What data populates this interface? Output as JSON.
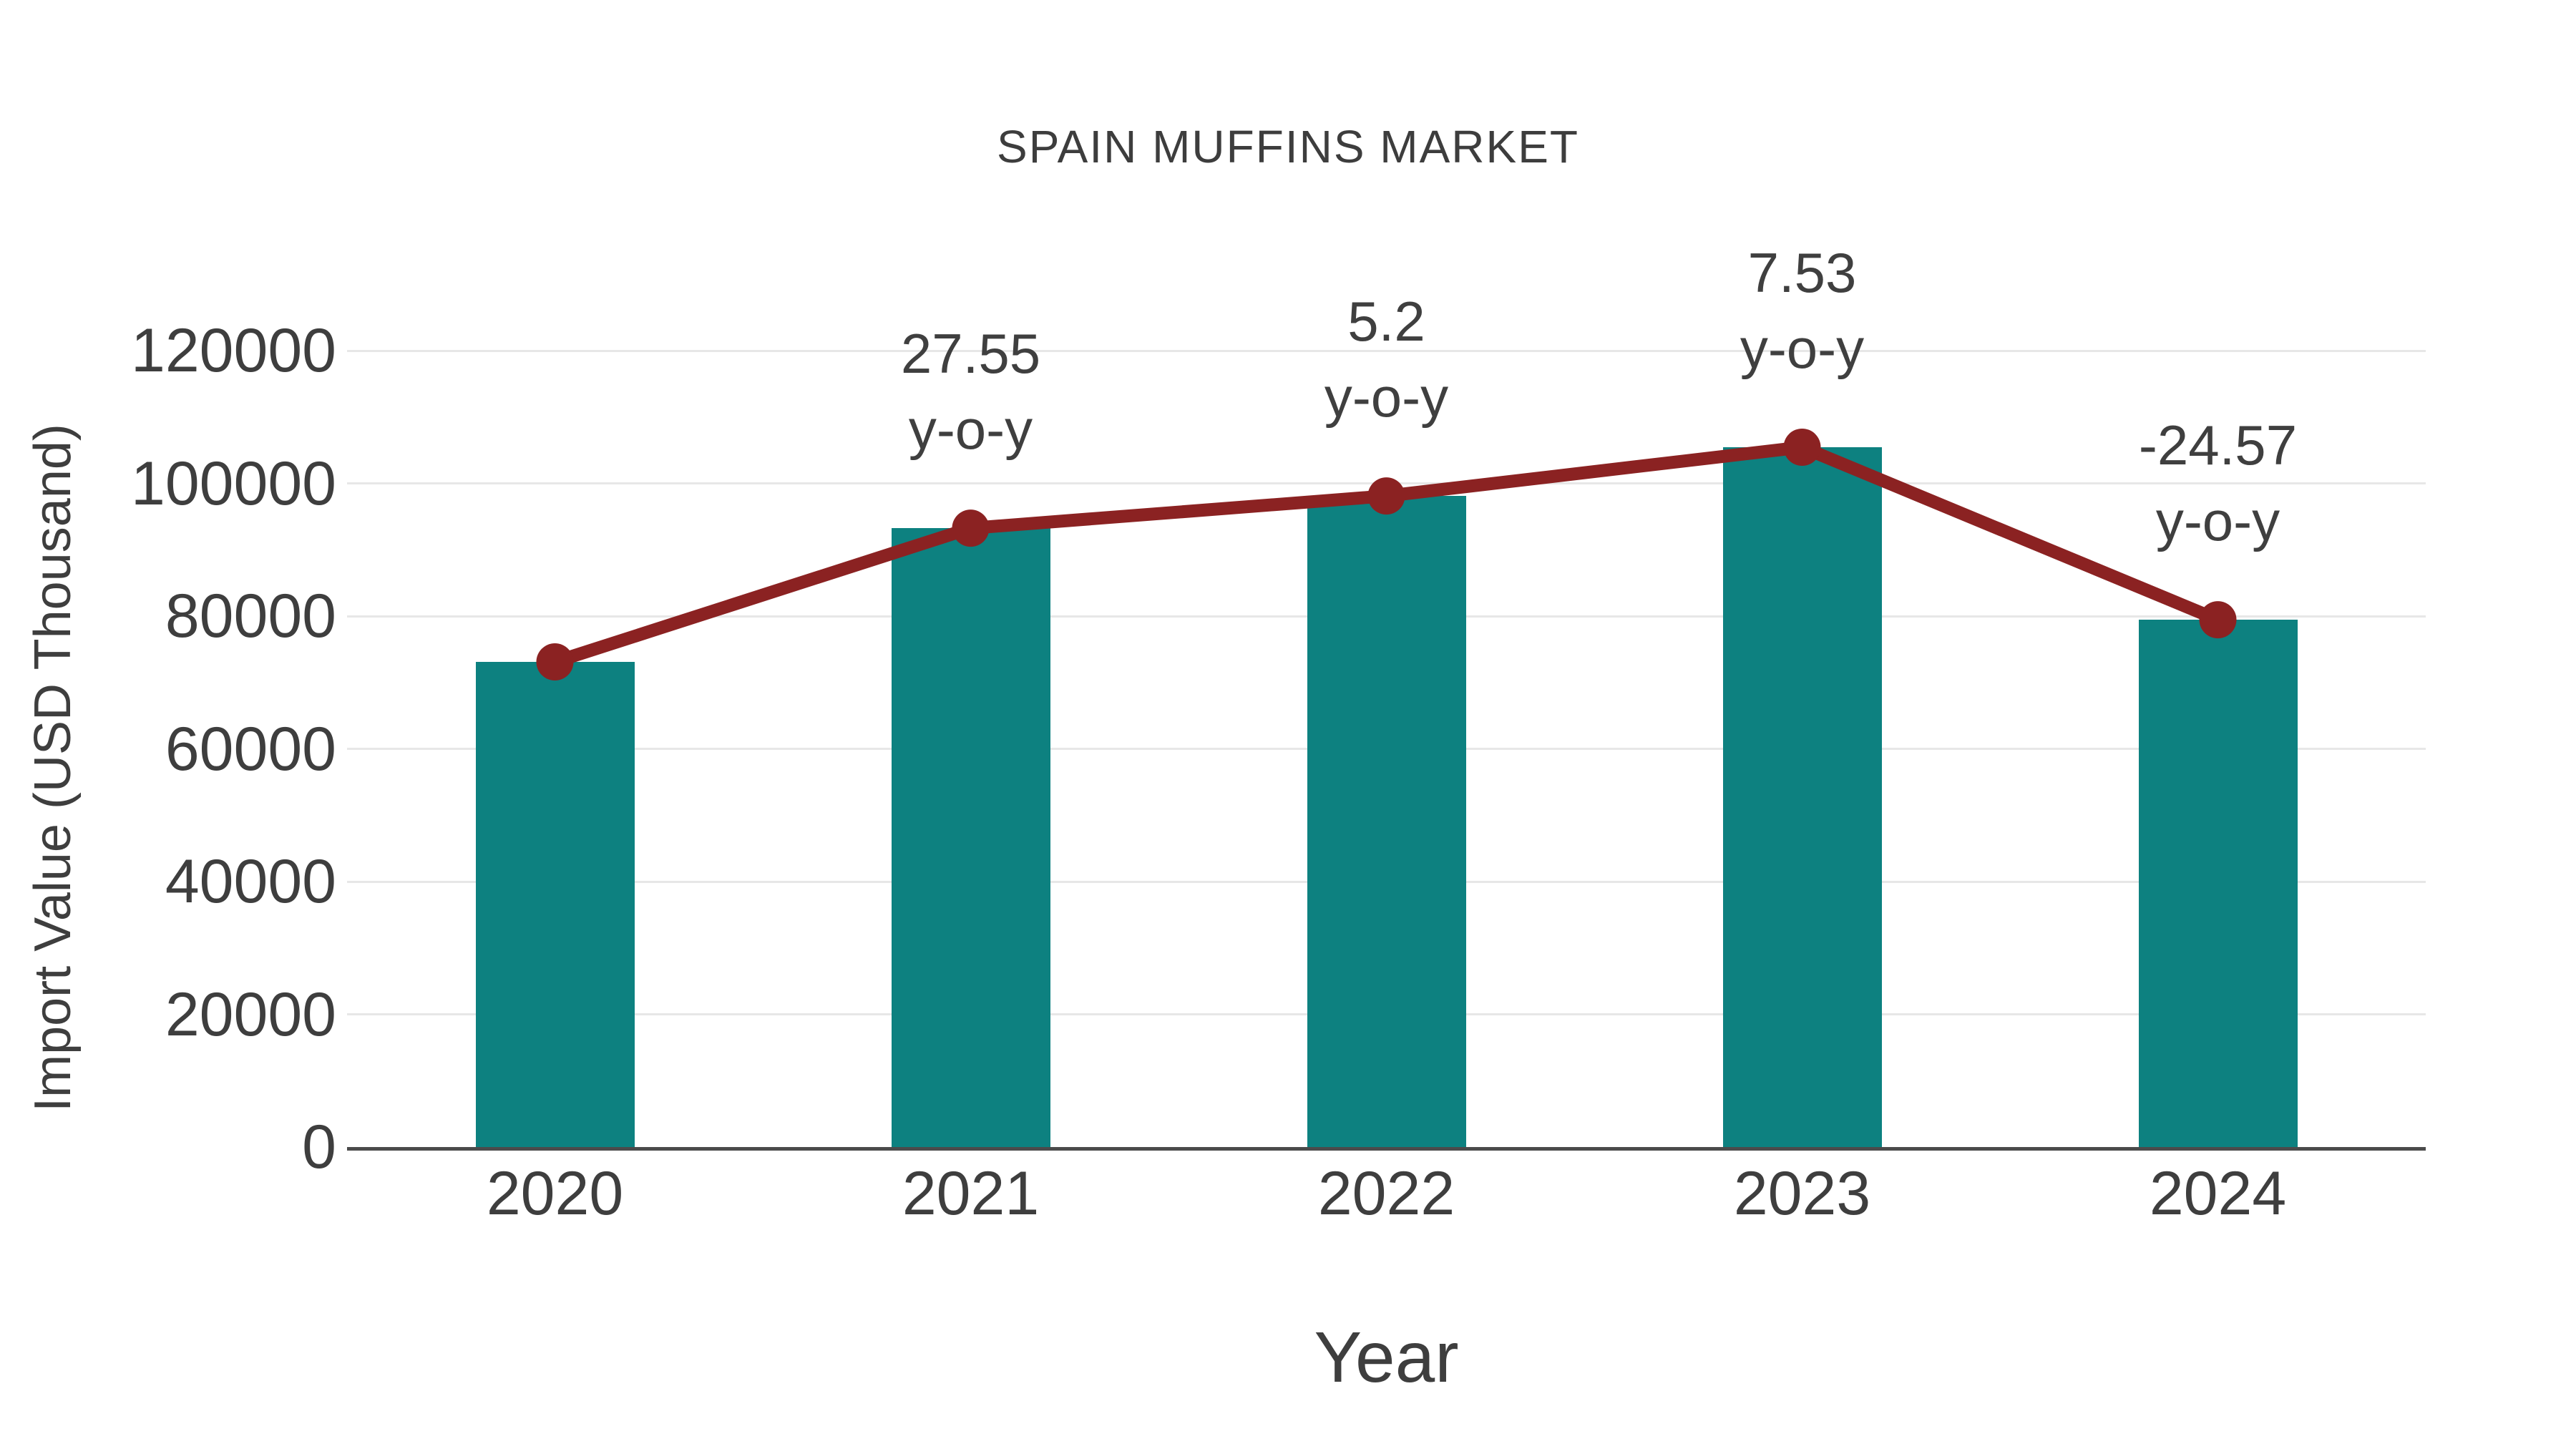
{
  "title": "SPAIN MUFFINS MARKET",
  "colors": {
    "bar": "#0d8180",
    "line": "#8b2222",
    "marker": "#8b2222",
    "grid": "#e7e7e7",
    "axis_line": "#4b4b4b",
    "text": "#3e3e3e",
    "background": "#ffffff"
  },
  "chart_data": {
    "type": "bar",
    "subtype": "bar-with-line-overlay",
    "title": "SPAIN MUFFINS MARKET",
    "xlabel": "Year",
    "ylabel": "Import Value (USD Thousand)",
    "categories": [
      "2020",
      "2021",
      "2022",
      "2023",
      "2024"
    ],
    "series": [
      {
        "name": "Import Value (USD Thousand)",
        "type": "bar",
        "color": "#0d8180",
        "values": [
          73100,
          93250,
          98100,
          105450,
          79450
        ]
      },
      {
        "name": "y-o-y change (%)",
        "type": "line",
        "color": "#8b2222",
        "values": [
          null,
          27.55,
          5.2,
          7.53,
          -24.57
        ]
      }
    ],
    "annotations": [
      {
        "category": "2021",
        "line1": "27.55",
        "line2": "y-o-y"
      },
      {
        "category": "2022",
        "line1": "5.2",
        "line2": "y-o-y"
      },
      {
        "category": "2023",
        "line1": "7.53",
        "line2": "y-o-y"
      },
      {
        "category": "2024",
        "line1": "-24.57",
        "line2": "y-o-y"
      }
    ],
    "yticks": [
      0,
      20000,
      40000,
      60000,
      80000,
      100000,
      120000
    ],
    "ylim": [
      0,
      120000
    ],
    "grid": "horizontal",
    "legend_position": "none"
  }
}
